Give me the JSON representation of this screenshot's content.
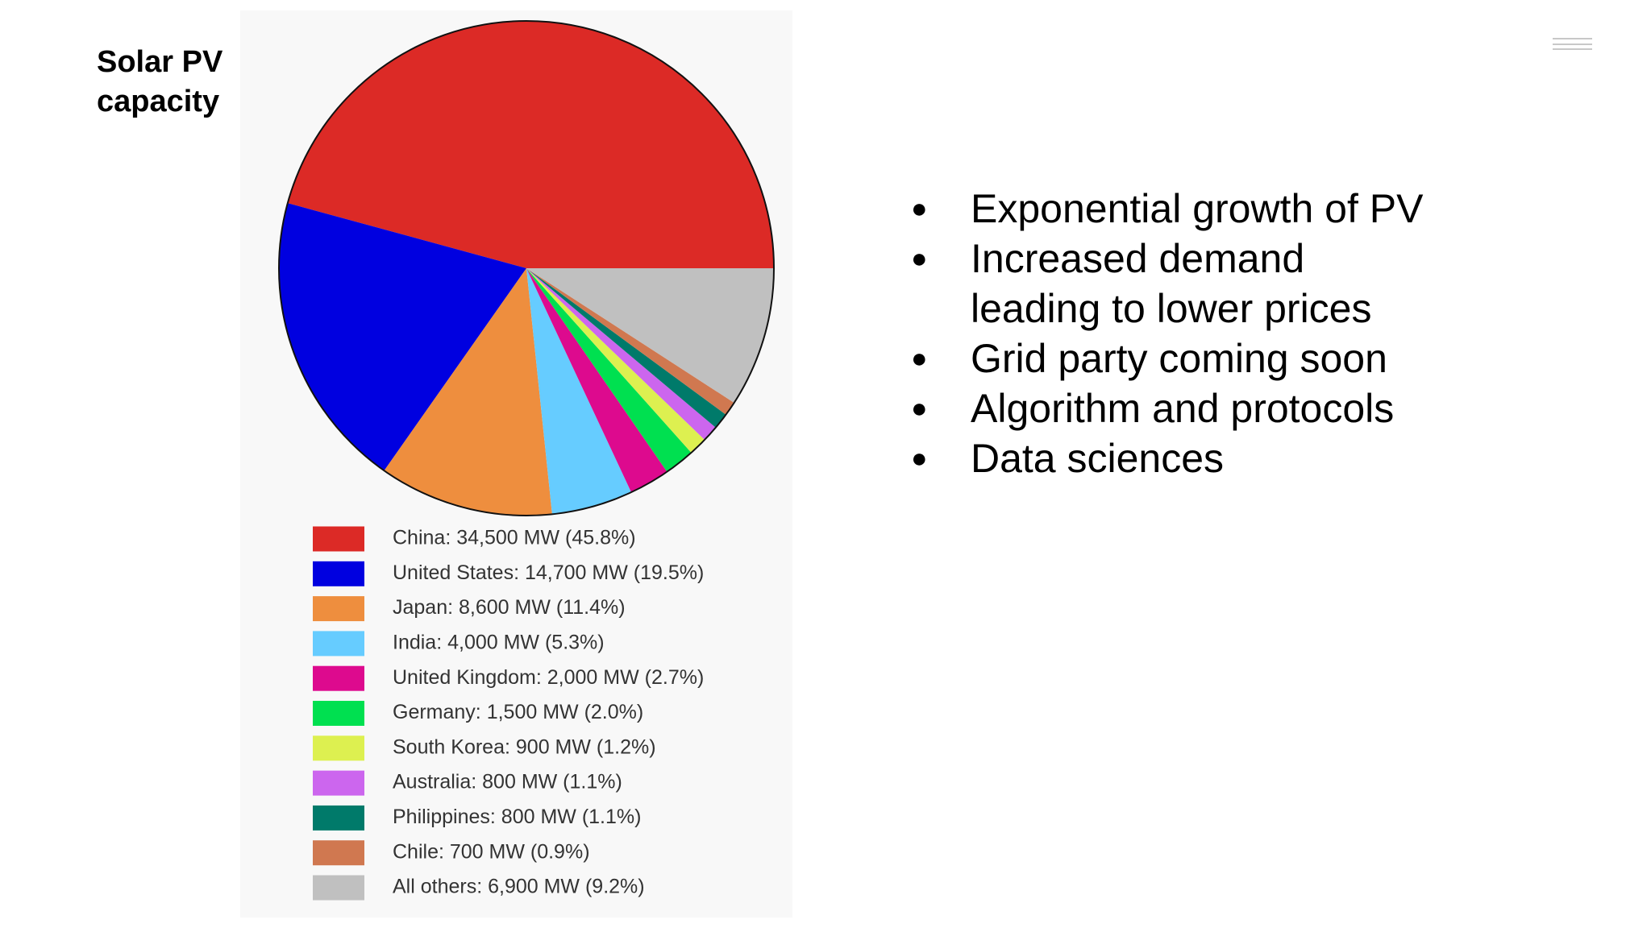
{
  "slide": {
    "title": "Solar PV capacity",
    "bullets": [
      "Exponential growth of PV",
      "Increased demand leading to lower prices",
      "Grid party coming soon",
      "Algorithm and protocols",
      "Data sciences"
    ]
  },
  "chart_data": {
    "type": "pie",
    "categories": [
      "China: 34,500 MW (45.8%)",
      "United States: 14,700 MW (19.5%)",
      "Japan: 8,600 MW (11.4%)",
      "India: 4,000 MW (5.3%)",
      "United Kingdom: 2,000 MW (2.7%)",
      "Germany: 1,500 MW (2.0%)",
      "South Korea: 900 MW (1.2%)",
      "Australia: 800 MW (1.1%)",
      "Philippines: 800 MW (1.1%)",
      "Chile: 700 MW (0.9%)",
      "All others: 6,900 MW (9.2%)"
    ],
    "values": [
      34500,
      14700,
      8600,
      4000,
      2000,
      1500,
      900,
      800,
      800,
      700,
      6900
    ],
    "colors": [
      "#dc2a26",
      "#0000e0",
      "#ee8e3e",
      "#66ccff",
      "#dd0a8e",
      "#00e050",
      "#ddf050",
      "#cc66ee",
      "#007a6a",
      "#d07850",
      "#c0c0c0"
    ]
  }
}
